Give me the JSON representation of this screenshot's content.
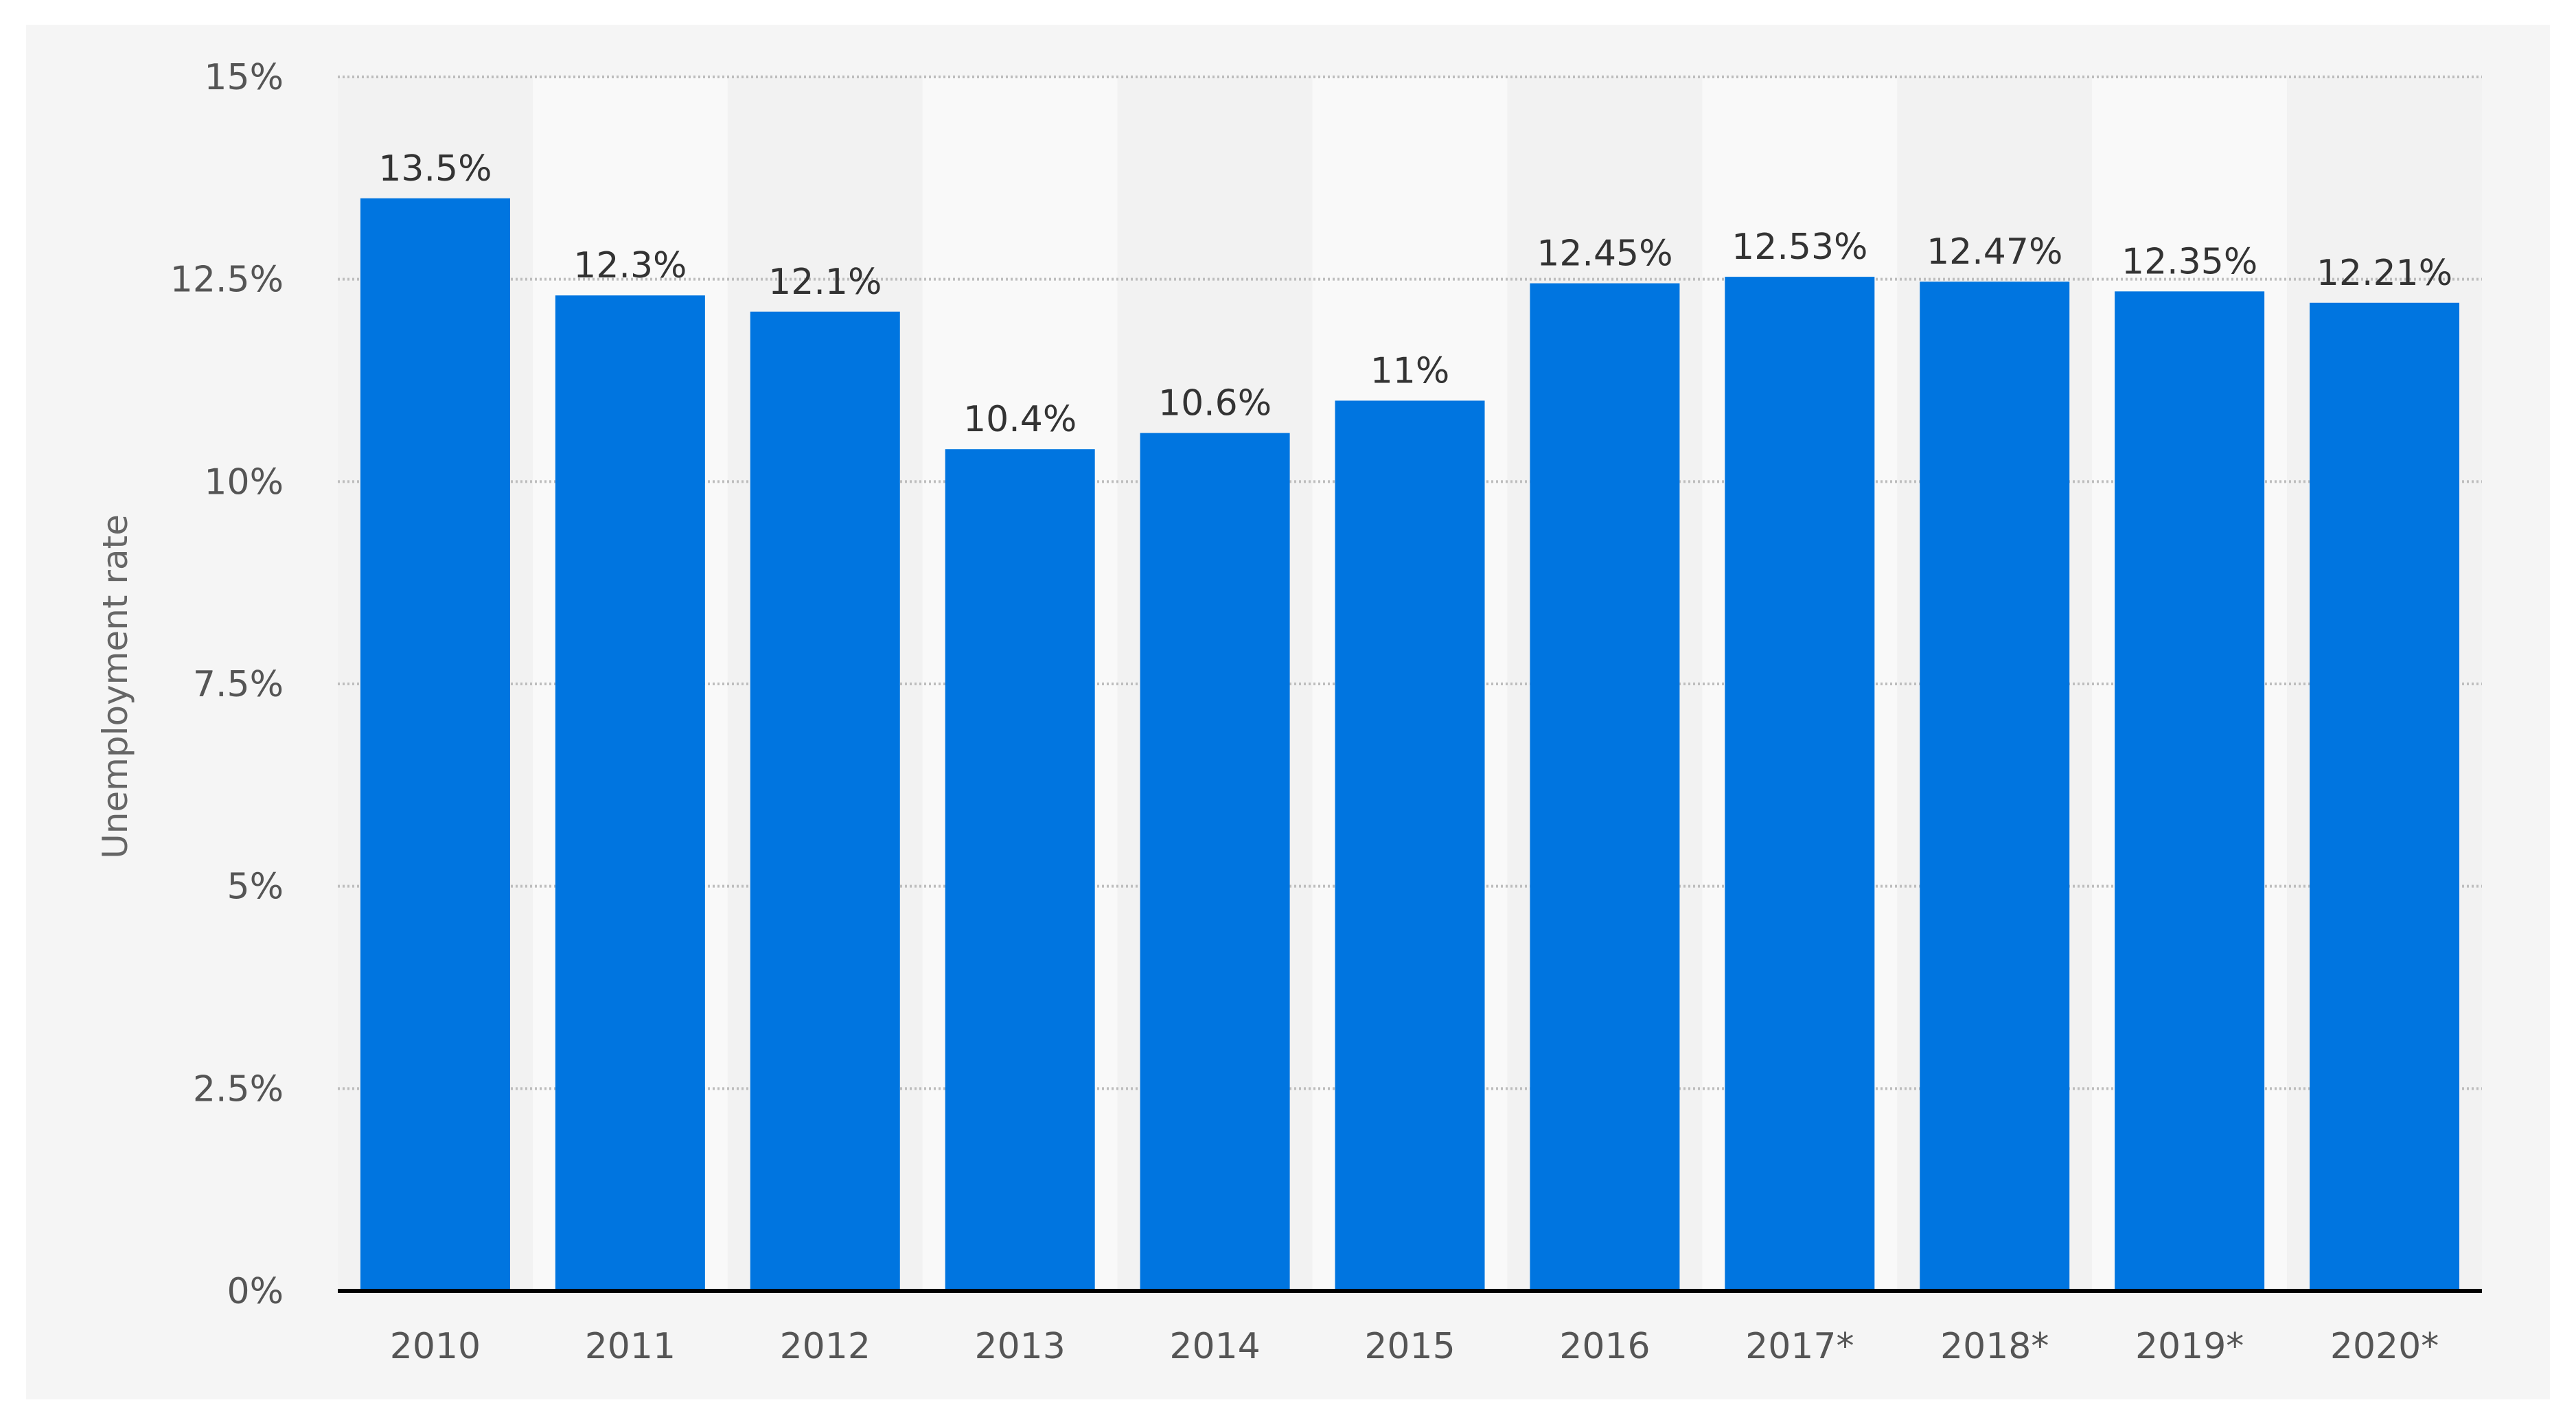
{
  "chart_data": {
    "type": "bar",
    "categories": [
      "2010",
      "2011",
      "2012",
      "2013",
      "2014",
      "2015",
      "2016",
      "2017*",
      "2018*",
      "2019*",
      "2020*"
    ],
    "values": [
      13.5,
      12.3,
      12.1,
      10.4,
      10.6,
      11,
      12.45,
      12.53,
      12.47,
      12.35,
      12.21
    ],
    "value_labels": [
      "13.5%",
      "12.3%",
      "12.1%",
      "10.4%",
      "10.6%",
      "11%",
      "12.45%",
      "12.53%",
      "12.47%",
      "12.35%",
      "12.21%"
    ],
    "ylabel": "Unemployment rate",
    "xlabel": "",
    "ylim": [
      0,
      15
    ],
    "yticks": [
      0,
      2.5,
      5,
      7.5,
      10,
      12.5,
      15
    ],
    "ytick_labels": [
      "0%",
      "2.5%",
      "5%",
      "7.5%",
      "10%",
      "12.5%",
      "15%"
    ],
    "grid": true,
    "colors": {
      "bar": "#0075E0",
      "axis_text": "#555555",
      "value_text": "#333333",
      "gridline": "#bdbdbd",
      "band_light": "#f9f9f9",
      "band_dark": "#f2f2f2",
      "panel_bg": "#f5f5f5",
      "baseline": "#000000"
    }
  }
}
